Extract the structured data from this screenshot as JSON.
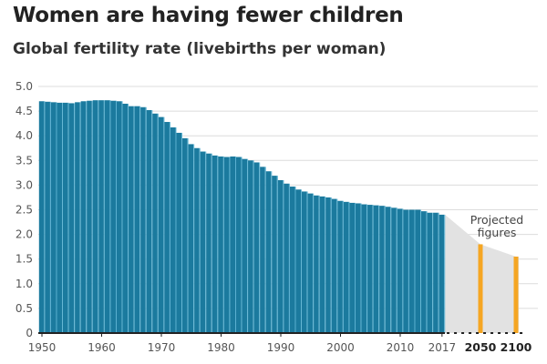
{
  "title": "Women are having fewer children",
  "subtitle": "Global fertility rate (livebirths per woman)",
  "chart_data": {
    "type": "bar",
    "title": "Women are having fewer children",
    "subtitle": "Global fertility rate (livebirths per woman)",
    "ylim": [
      0,
      5.0
    ],
    "yticks": [
      "0",
      "0.5",
      "1.0",
      "1.5",
      "2.0",
      "2.5",
      "3.0",
      "3.5",
      "4.0",
      "4.5",
      "5.0"
    ],
    "xticks": [
      "1950",
      "1960",
      "1970",
      "1980",
      "1990",
      "2000",
      "2010",
      "2017"
    ],
    "grid": true,
    "legend": "none",
    "series": [
      {
        "color": "#1b7a9e",
        "x": [
          1950,
          1951,
          1952,
          1953,
          1954,
          1955,
          1956,
          1957,
          1958,
          1959,
          1960,
          1961,
          1962,
          1963,
          1964,
          1965,
          1966,
          1967,
          1968,
          1969,
          1970,
          1971,
          1972,
          1973,
          1974,
          1975,
          1976,
          1977,
          1978,
          1979,
          1980,
          1981,
          1982,
          1983,
          1984,
          1985,
          1986,
          1987,
          1988,
          1989,
          1990,
          1991,
          1992,
          1993,
          1994,
          1995,
          1996,
          1997,
          1998,
          1999,
          2000,
          2001,
          2002,
          2003,
          2004,
          2005,
          2006,
          2007,
          2008,
          2009,
          2010,
          2011,
          2012,
          2013,
          2014,
          2015,
          2016,
          2017
        ],
        "values": [
          4.7,
          4.69,
          4.68,
          4.67,
          4.67,
          4.66,
          4.68,
          4.7,
          4.71,
          4.72,
          4.72,
          4.72,
          4.71,
          4.7,
          4.65,
          4.6,
          4.6,
          4.58,
          4.52,
          4.45,
          4.38,
          4.28,
          4.17,
          4.06,
          3.95,
          3.83,
          3.75,
          3.68,
          3.64,
          3.6,
          3.58,
          3.57,
          3.58,
          3.57,
          3.53,
          3.5,
          3.46,
          3.37,
          3.28,
          3.19,
          3.1,
          3.03,
          2.97,
          2.91,
          2.87,
          2.83,
          2.79,
          2.77,
          2.75,
          2.72,
          2.68,
          2.66,
          2.64,
          2.63,
          2.61,
          2.6,
          2.59,
          2.58,
          2.56,
          2.54,
          2.52,
          2.5,
          2.5,
          2.5,
          2.47,
          2.44,
          2.44,
          2.4
        ]
      },
      {
        "color": "#f5a623",
        "x": [
          2050,
          2100
        ],
        "labels": [
          "2050",
          "2100"
        ],
        "values": [
          1.8,
          1.55
        ]
      }
    ],
    "annotation": "Projected figures",
    "annotation_lines": [
      "Projected",
      "figures"
    ],
    "projection_fill": "#e2e2e2"
  }
}
